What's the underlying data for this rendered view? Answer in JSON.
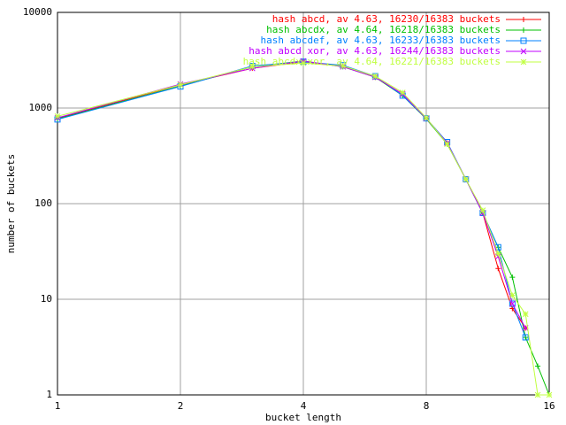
{
  "chart_data": {
    "type": "line",
    "x_label": "bucket length",
    "y_label": "number of buckets",
    "x": [
      1,
      2,
      3,
      4,
      5,
      6,
      7,
      8,
      9,
      10,
      11,
      12,
      13,
      14,
      15,
      16
    ],
    "xlim": [
      1,
      16
    ],
    "xticks": [
      1,
      2,
      4,
      8,
      16
    ],
    "xlog": 2,
    "ylim": [
      1,
      10000
    ],
    "yticks": [
      1,
      10,
      100,
      1000,
      10000
    ],
    "ylog": 10,
    "grid": true,
    "legend": "top-right",
    "series": [
      {
        "name": "hash abcd, av 4.63, 16230/16383 buckets",
        "color": "#ff0000",
        "marker": "plus",
        "values": [
          780,
          1750,
          2600,
          3050,
          2750,
          2100,
          1400,
          780,
          430,
          180,
          80,
          21,
          8,
          5,
          null,
          null
        ]
      },
      {
        "name": "hash abcdx, av 4.64, 16218/16383 buckets",
        "color": "#00c000",
        "marker": "plus",
        "values": [
          770,
          1700,
          2700,
          3100,
          2700,
          2100,
          1350,
          770,
          420,
          180,
          80,
          35,
          17,
          4,
          2,
          1
        ]
      },
      {
        "name": "hash abcdef, av 4.63, 16233/16383 buckets",
        "color": "#0080ff",
        "marker": "square",
        "values": [
          760,
          1680,
          2750,
          3050,
          2800,
          2150,
          1350,
          780,
          440,
          180,
          80,
          35,
          9,
          4,
          null,
          null
        ]
      },
      {
        "name": "hash abcd xor, av 4.63, 16244/16383 buckets",
        "color": "#c000ff",
        "marker": "cross",
        "values": [
          790,
          1780,
          2600,
          3100,
          2700,
          2100,
          1400,
          780,
          430,
          180,
          80,
          28,
          9,
          5,
          null,
          null
        ]
      },
      {
        "name": "hash abcdx xor, av 4.64, 16221/16383 buckets",
        "color": "#c0ff40",
        "marker": "star",
        "values": [
          820,
          1750,
          2700,
          2950,
          2750,
          2150,
          1450,
          790,
          420,
          180,
          85,
          30,
          11,
          7,
          1,
          1
        ]
      }
    ]
  }
}
